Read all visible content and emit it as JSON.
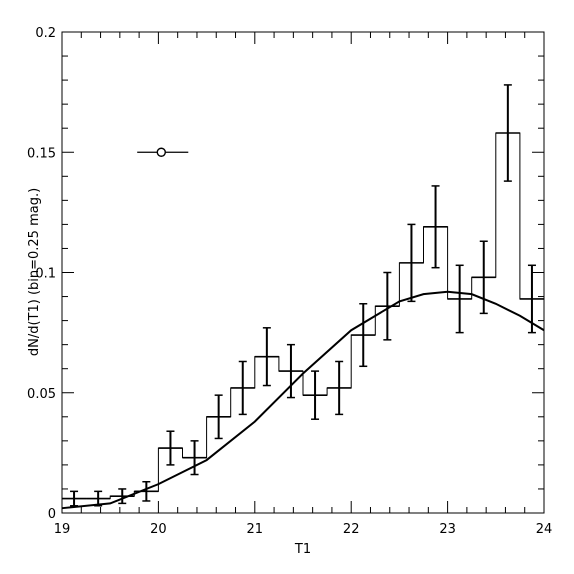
{
  "chart_data": {
    "type": "histogram",
    "xlabel": "T1",
    "ylabel": "dN/d(T1)  (bin=0.25  mag.)",
    "xlim": [
      19,
      24
    ],
    "ylim": [
      0,
      0.2
    ],
    "xticks": [
      {
        "value": 19,
        "label": "19"
      },
      {
        "value": 20,
        "label": "20"
      },
      {
        "value": 21,
        "label": "21"
      },
      {
        "value": 22,
        "label": "22"
      },
      {
        "value": 23,
        "label": "23"
      },
      {
        "value": 24,
        "label": "24"
      }
    ],
    "yticks": [
      {
        "value": 0,
        "label": "0"
      },
      {
        "value": 0.05,
        "label": "0.05"
      },
      {
        "value": 0.1,
        "label": "0.1"
      },
      {
        "value": 0.15,
        "label": "0.15"
      },
      {
        "value": 0.2,
        "label": "0.2"
      }
    ],
    "bin_width": 0.25,
    "histogram": [
      {
        "x": 19.125,
        "y": 0.006,
        "err": 0.003
      },
      {
        "x": 19.375,
        "y": 0.006,
        "err": 0.003
      },
      {
        "x": 19.625,
        "y": 0.007,
        "err": 0.003
      },
      {
        "x": 19.875,
        "y": 0.009,
        "err": 0.004
      },
      {
        "x": 20.125,
        "y": 0.027,
        "err": 0.007
      },
      {
        "x": 20.375,
        "y": 0.023,
        "err": 0.007
      },
      {
        "x": 20.625,
        "y": 0.04,
        "err": 0.009
      },
      {
        "x": 20.875,
        "y": 0.052,
        "err": 0.011
      },
      {
        "x": 21.125,
        "y": 0.065,
        "err": 0.012
      },
      {
        "x": 21.375,
        "y": 0.059,
        "err": 0.011
      },
      {
        "x": 21.625,
        "y": 0.049,
        "err": 0.01
      },
      {
        "x": 21.875,
        "y": 0.052,
        "err": 0.011
      },
      {
        "x": 22.125,
        "y": 0.074,
        "err": 0.013
      },
      {
        "x": 22.375,
        "y": 0.086,
        "err": 0.014
      },
      {
        "x": 22.625,
        "y": 0.104,
        "err": 0.016
      },
      {
        "x": 22.875,
        "y": 0.119,
        "err": 0.017
      },
      {
        "x": 23.125,
        "y": 0.089,
        "err": 0.014
      },
      {
        "x": 23.375,
        "y": 0.098,
        "err": 0.015
      },
      {
        "x": 23.625,
        "y": 0.158,
        "err": 0.02
      },
      {
        "x": 23.875,
        "y": 0.089,
        "err": 0.014
      }
    ],
    "model_curve": {
      "x": [
        19.0,
        19.5,
        20.0,
        20.5,
        21.0,
        21.5,
        22.0,
        22.5,
        22.75,
        23.0,
        23.25,
        23.5,
        23.75,
        24.0
      ],
      "y": [
        0.002,
        0.004,
        0.012,
        0.022,
        0.038,
        0.058,
        0.076,
        0.088,
        0.091,
        0.092,
        0.091,
        0.087,
        0.082,
        0.076
      ]
    },
    "typical_error_marker": {
      "x": 20.03,
      "y": 0.15,
      "xerr_low": 0.25,
      "xerr_high": 0.28
    }
  }
}
